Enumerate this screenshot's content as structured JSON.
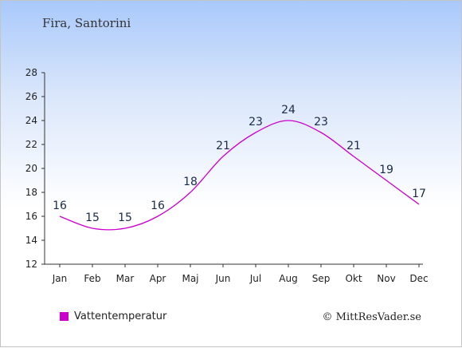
{
  "header": {
    "location": "Fira, Santorini"
  },
  "legend": {
    "label": "Vattentemperatur",
    "color": "#cc00cc"
  },
  "footer": {
    "copyright": "© MittResVader.se"
  },
  "chart_data": {
    "type": "line",
    "title": "",
    "xlabel": "",
    "ylabel": "",
    "categories": [
      "Jan",
      "Feb",
      "Mar",
      "Apr",
      "Maj",
      "Jun",
      "Jul",
      "Aug",
      "Sep",
      "Okt",
      "Nov",
      "Dec"
    ],
    "series": [
      {
        "name": "Vattentemperatur",
        "values": [
          16,
          15,
          15,
          16,
          18,
          21,
          23,
          24,
          23,
          21,
          19,
          17
        ],
        "color": "#cc00cc"
      }
    ],
    "ylim": [
      12,
      28
    ],
    "yticks": [
      12,
      14,
      16,
      18,
      20,
      22,
      24,
      26,
      28
    ],
    "grid": false,
    "legend_position": "bottom-left"
  }
}
